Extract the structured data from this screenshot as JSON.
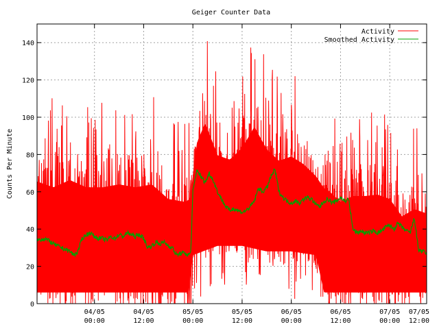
{
  "colors": {
    "background": "#ffffff",
    "activity": "#ff0000",
    "smoothed": "#00a000",
    "grid": "#a0a0a0",
    "axis": "#000000"
  },
  "chart_data": {
    "type": "line",
    "title": "Geiger Counter Data",
    "xlabel": "",
    "ylabel": "Counts Per Minute",
    "ylim": [
      0,
      150
    ],
    "xlim_hours": [
      -14,
      81
    ],
    "grid": true,
    "legend_position": "top-right",
    "y_ticks": [
      0,
      20,
      40,
      60,
      80,
      100,
      120,
      140
    ],
    "x_ticks": [
      {
        "hours": 0,
        "line1": "04/05",
        "line2": "00:00"
      },
      {
        "hours": 12,
        "line1": "04/05",
        "line2": "12:00"
      },
      {
        "hours": 24,
        "line1": "05/05",
        "line2": "00:00"
      },
      {
        "hours": 36,
        "line1": "05/05",
        "line2": "12:00"
      },
      {
        "hours": 48,
        "line1": "06/05",
        "line2": "00:00"
      },
      {
        "hours": 60,
        "line1": "06/05",
        "line2": "12:00"
      },
      {
        "hours": 72,
        "line1": "07/05",
        "line2": "00:00"
      },
      {
        "hours": 84,
        "line1": "07/05",
        "line2": "12:00"
      }
    ],
    "series": [
      {
        "name": "Activity",
        "style": "dense-noise",
        "upper_envelope": [
          [
            -14,
            84
          ],
          [
            -10,
            80
          ],
          [
            -6,
            85
          ],
          [
            -2,
            80
          ],
          [
            2,
            80
          ],
          [
            6,
            82
          ],
          [
            10,
            80
          ],
          [
            14,
            82
          ],
          [
            18,
            72
          ],
          [
            22,
            70
          ],
          [
            23.5,
            72
          ],
          [
            25,
            105
          ],
          [
            27,
            118
          ],
          [
            30,
            95
          ],
          [
            33,
            92
          ],
          [
            36,
            100
          ],
          [
            39,
            115
          ],
          [
            42,
            100
          ],
          [
            45,
            92
          ],
          [
            48,
            95
          ],
          [
            51,
            90
          ],
          [
            54,
            82
          ],
          [
            57,
            78
          ],
          [
            60,
            70
          ],
          [
            63,
            74
          ],
          [
            66,
            74
          ],
          [
            69,
            75
          ],
          [
            72,
            72
          ],
          [
            75,
            60
          ],
          [
            78,
            65
          ],
          [
            81,
            62
          ]
        ],
        "lower_envelope": [
          [
            -14,
            0
          ],
          [
            -6,
            0
          ],
          [
            2,
            0
          ],
          [
            10,
            0
          ],
          [
            18,
            0
          ],
          [
            23,
            0
          ],
          [
            24,
            20
          ],
          [
            30,
            25
          ],
          [
            36,
            25
          ],
          [
            42,
            22
          ],
          [
            48,
            22
          ],
          [
            54,
            20
          ],
          [
            56,
            0
          ],
          [
            64,
            0
          ],
          [
            72,
            0
          ],
          [
            81,
            0
          ]
        ]
      },
      {
        "name": "Smoothed Activity",
        "points": [
          [
            -14,
            34
          ],
          [
            -12,
            35
          ],
          [
            -10,
            32
          ],
          [
            -8,
            30
          ],
          [
            -6,
            28
          ],
          [
            -5,
            26
          ],
          [
            -4,
            28
          ],
          [
            -3,
            35
          ],
          [
            -2,
            37
          ],
          [
            -1,
            38
          ],
          [
            0,
            36
          ],
          [
            1,
            35
          ],
          [
            2,
            35
          ],
          [
            3,
            34
          ],
          [
            4,
            36
          ],
          [
            5,
            35
          ],
          [
            6,
            37
          ],
          [
            7,
            36
          ],
          [
            8,
            38
          ],
          [
            9,
            37
          ],
          [
            10,
            36
          ],
          [
            11,
            37
          ],
          [
            12,
            35
          ],
          [
            13,
            30
          ],
          [
            14,
            31
          ],
          [
            15,
            33
          ],
          [
            16,
            32
          ],
          [
            17,
            33
          ],
          [
            18,
            31
          ],
          [
            19,
            30
          ],
          [
            20,
            26
          ],
          [
            21,
            27
          ],
          [
            22,
            27
          ],
          [
            23,
            26
          ],
          [
            23.5,
            28
          ],
          [
            24,
            60
          ],
          [
            25,
            72
          ],
          [
            26,
            68
          ],
          [
            27,
            65
          ],
          [
            28,
            70
          ],
          [
            29,
            66
          ],
          [
            30,
            60
          ],
          [
            31,
            56
          ],
          [
            32,
            52
          ],
          [
            33,
            50
          ],
          [
            34,
            51
          ],
          [
            35,
            50
          ],
          [
            36,
            49
          ],
          [
            37,
            50
          ],
          [
            38,
            52
          ],
          [
            39,
            55
          ],
          [
            40,
            62
          ],
          [
            41,
            60
          ],
          [
            42,
            62
          ],
          [
            43,
            68
          ],
          [
            44,
            72
          ],
          [
            45,
            60
          ],
          [
            46,
            57
          ],
          [
            47,
            55
          ],
          [
            48,
            54
          ],
          [
            49,
            55
          ],
          [
            50,
            54
          ],
          [
            51,
            56
          ],
          [
            52,
            57
          ],
          [
            53,
            56
          ],
          [
            54,
            53
          ],
          [
            55,
            52
          ],
          [
            56,
            55
          ],
          [
            57,
            56
          ],
          [
            58,
            54
          ],
          [
            59,
            55
          ],
          [
            60,
            57
          ],
          [
            61,
            55
          ],
          [
            62,
            56
          ],
          [
            63,
            40
          ],
          [
            64,
            38
          ],
          [
            65,
            39
          ],
          [
            66,
            38
          ],
          [
            67,
            38
          ],
          [
            68,
            39
          ],
          [
            69,
            38
          ],
          [
            70,
            39
          ],
          [
            71,
            41
          ],
          [
            72,
            42
          ],
          [
            73,
            40
          ],
          [
            74,
            43
          ],
          [
            75,
            41
          ],
          [
            76,
            39
          ],
          [
            77,
            38
          ],
          [
            78,
            46
          ],
          [
            79,
            29
          ],
          [
            80,
            28
          ],
          [
            81,
            27
          ]
        ]
      }
    ]
  },
  "legend": {
    "items": [
      {
        "label": "Activity"
      },
      {
        "label": "Smoothed Activity"
      }
    ]
  }
}
